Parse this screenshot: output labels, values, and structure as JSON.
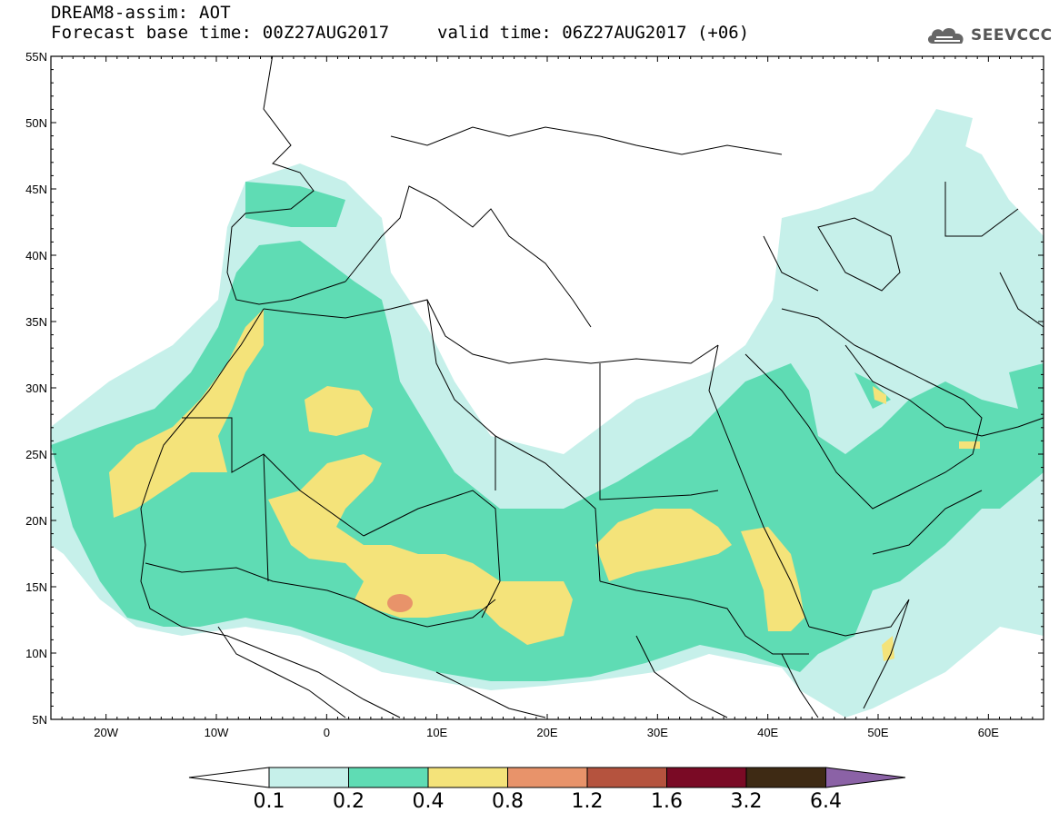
{
  "header": {
    "title": "DREAM8-assim: AOT",
    "base_time": "Forecast base time: 00Z27AUG2017",
    "valid_time": "valid time: 06Z27AUG2017 (+06)",
    "logo_text": "SEEVCCC"
  },
  "map": {
    "lon_range": [
      -25,
      65
    ],
    "lat_range": [
      5,
      55
    ],
    "lat_labels": [
      "55N",
      "50N",
      "45N",
      "40N",
      "35N",
      "30N",
      "25N",
      "20N",
      "15N",
      "10N",
      "5N"
    ],
    "lon_labels": [
      "20W",
      "10W",
      "0",
      "10E",
      "20E",
      "30E",
      "40E",
      "50E",
      "60E"
    ]
  },
  "legend": {
    "levels": [
      "0.1",
      "0.2",
      "0.4",
      "0.8",
      "1.2",
      "1.6",
      "3.2",
      "6.4"
    ],
    "colors": [
      "#c6f0ea",
      "#5fdcb4",
      "#f4e37a",
      "#e8936a",
      "#b5533e",
      "#7a0a25",
      "#3e2a14",
      "#8b62a6"
    ]
  }
}
